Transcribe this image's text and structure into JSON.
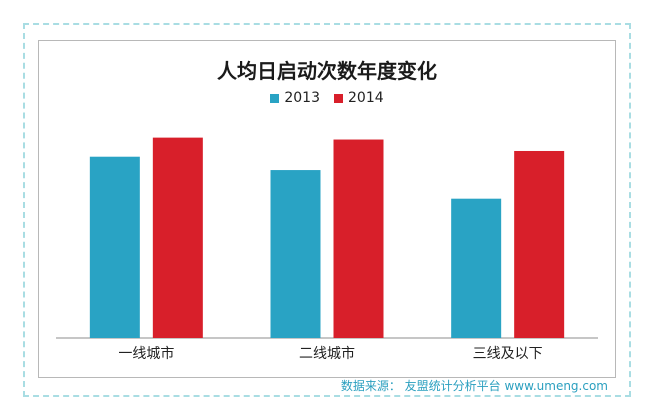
{
  "chart_data": {
    "type": "bar",
    "title": "人均日启动次数年度变化",
    "categories": [
      "一线城市",
      "二线城市",
      "三线及以下"
    ],
    "series": [
      {
        "name": "2013",
        "color": "#29a3c4",
        "values": [
          9.5,
          8.8,
          7.3
        ]
      },
      {
        "name": "2014",
        "color": "#d81f2a",
        "values": [
          10.5,
          10.4,
          9.8
        ]
      }
    ],
    "ylim": [
      0,
      12
    ],
    "grid": false,
    "legend_position": "top"
  },
  "source_note": "数据来源： 友盟统计分析平台 www.umeng.com"
}
